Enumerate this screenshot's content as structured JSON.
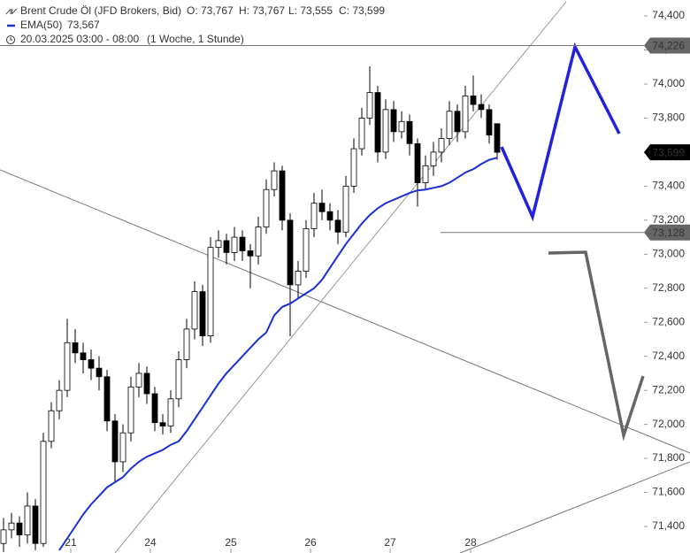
{
  "chart_data": {
    "type": "candlestick",
    "header": {
      "instrument": "Brent Crude Öl (JFD Brokers, Bid)",
      "open_text": "O: 73,767",
      "high_text": "H: 73,767",
      "low_text": "L: 73,555",
      "close_text": "C: 73,599",
      "ema_text": "73,567",
      "date_text": "20.03.2025 03:00 - 08:00",
      "period_text": "(1 Woche, 1 Stunde)"
    },
    "up_color": "#ffffff",
    "down_color": "#000000",
    "open": [
      71300,
      71380,
      71420,
      71350,
      71520,
      71300,
      71900,
      72080,
      72200,
      72480,
      72420,
      72380,
      72330,
      72280,
      72020,
      71780,
      71950,
      72220,
      72300,
      72180,
      72010,
      71990,
      72150,
      72380,
      72560,
      72780,
      72520,
      73040,
      73080,
      73010,
      73100,
      73020,
      72990,
      73160,
      73380,
      73490,
      73200,
      72820,
      72900,
      73150,
      73300,
      73250,
      73200,
      73130,
      73400,
      73620,
      73800,
      73950,
      73600,
      73850,
      73720,
      73780,
      73650,
      73420,
      73520,
      73600,
      73680,
      73840,
      73720,
      73930,
      73880,
      73850,
      73767
    ],
    "high": [
      71450,
      71480,
      71460,
      71600,
      71560,
      71950,
      72130,
      72260,
      72620,
      72560,
      72480,
      72440,
      72400,
      72320,
      72060,
      72000,
      72280,
      72360,
      72340,
      72220,
      72060,
      72200,
      72430,
      72620,
      72840,
      72820,
      73100,
      73140,
      73120,
      73160,
      73140,
      73060,
      73220,
      73440,
      73540,
      73520,
      73240,
      72960,
      73200,
      73360,
      73380,
      73300,
      73260,
      73460,
      73680,
      73860,
      74104,
      73990,
      73910,
      73900,
      73840,
      73820,
      73680,
      73580,
      73660,
      73740,
      73900,
      73880,
      73990,
      74050,
      73940,
      73880,
      73767
    ],
    "low": [
      71250,
      71330,
      71280,
      71300,
      71260,
      71280,
      71860,
      72030,
      72160,
      72360,
      72300,
      72260,
      72200,
      71960,
      71660,
      71720,
      71900,
      72160,
      72120,
      71960,
      71940,
      71950,
      72100,
      72330,
      72500,
      72460,
      72480,
      72980,
      72940,
      72960,
      72960,
      72800,
      72940,
      73120,
      73340,
      73140,
      72518,
      72740,
      72860,
      73100,
      73200,
      73140,
      73060,
      73100,
      73360,
      73580,
      73760,
      73540,
      73560,
      73660,
      73680,
      73580,
      73280,
      73380,
      73460,
      73540,
      73640,
      73660,
      73680,
      73840,
      73800,
      73650,
      73555
    ],
    "close": [
      71380,
      71420,
      71350,
      71520,
      71300,
      71900,
      72080,
      72200,
      72480,
      72420,
      72380,
      72330,
      72280,
      72020,
      71780,
      71950,
      72220,
      72300,
      72180,
      72010,
      71990,
      72150,
      72380,
      72560,
      72780,
      72520,
      73040,
      73080,
      73010,
      73100,
      73020,
      72990,
      73160,
      73380,
      73490,
      73200,
      72820,
      72900,
      73150,
      73300,
      73250,
      73200,
      73130,
      73400,
      73620,
      73800,
      73950,
      73600,
      73850,
      73720,
      73780,
      73650,
      73420,
      73520,
      73600,
      73680,
      73840,
      73720,
      73930,
      73880,
      73850,
      73700,
      73599
    ],
    "series": [
      {
        "name": "EMA(50)",
        "color": "#1a2fd6",
        "values": [
          null,
          null,
          null,
          null,
          null,
          null,
          null,
          71260,
          71330,
          71400,
          71470,
          71530,
          71580,
          71630,
          71660,
          71690,
          71740,
          71780,
          71810,
          71830,
          71850,
          71880,
          71900,
          71960,
          72030,
          72100,
          72170,
          72240,
          72300,
          72350,
          72400,
          72450,
          72500,
          72540,
          72640,
          72690,
          72710,
          72740,
          72770,
          72800,
          72850,
          72920,
          72990,
          73060,
          73120,
          73180,
          73230,
          73270,
          73300,
          73320,
          73340,
          73360,
          73375,
          73380,
          73390,
          73400,
          73420,
          73450,
          73480,
          73500,
          73530,
          73555,
          73567
        ]
      }
    ],
    "xlim": [
      -0.444,
      80.444
    ],
    "xticks": [
      {
        "value": 8.44,
        "label": "21"
      },
      {
        "value": 18.44,
        "label": "24"
      },
      {
        "value": 28.56,
        "label": "25"
      },
      {
        "value": 38.56,
        "label": "26"
      },
      {
        "value": 48.56,
        "label": "27"
      },
      {
        "value": 58.67,
        "label": "28"
      }
    ],
    "ylim": [
      71244,
      74494
    ],
    "yticks": [
      {
        "value": 71400,
        "label": "71,400"
      },
      {
        "value": 71600,
        "label": "71,600"
      },
      {
        "value": 71800,
        "label": "71,800"
      },
      {
        "value": 72000,
        "label": "72,000"
      },
      {
        "value": 72200,
        "label": "72,200"
      },
      {
        "value": 72400,
        "label": "72,400"
      },
      {
        "value": 72600,
        "label": "72,600"
      },
      {
        "value": 72800,
        "label": "72,800"
      },
      {
        "value": 73000,
        "label": "73,000"
      },
      {
        "value": 73200,
        "label": "73,200"
      },
      {
        "value": 73400,
        "label": "73,400"
      },
      {
        "value": 73600,
        "label": "73,600"
      },
      {
        "value": 73800,
        "label": "73,800"
      },
      {
        "value": 74000,
        "label": "74,000"
      },
      {
        "value": 74200,
        "label": "74,200"
      },
      {
        "value": 74400,
        "label": "74,400"
      }
    ],
    "price_tags": [
      {
        "value": 74226,
        "label": "74,226",
        "color": "#666666"
      },
      {
        "value": 73599,
        "label": "73,599",
        "color": "#000000"
      },
      {
        "value": 73128,
        "label": "73,128",
        "color": "#666666"
      }
    ]
  }
}
